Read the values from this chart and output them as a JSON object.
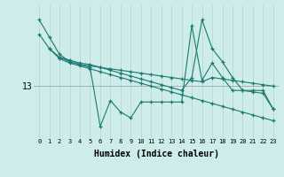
{
  "xlabel": "Humidex (Indice chaleur)",
  "bg_color": "#ceecea",
  "line_color": "#1a7a6e",
  "grid_color_v": "#c8dedd",
  "grid_color_h": "#aaaaaa",
  "ytick_val": 13,
  "xlim": [
    -0.5,
    23.5
  ],
  "ylim": [
    11.2,
    15.8
  ],
  "series": [
    {
      "x": [
        0,
        1,
        2,
        3,
        4,
        5,
        6,
        7,
        8,
        9,
        10,
        11,
        12,
        13,
        14,
        15,
        16,
        17,
        18,
        19,
        20,
        21,
        22,
        23
      ],
      "y": [
        15.3,
        14.7,
        14.1,
        13.85,
        13.75,
        13.65,
        11.6,
        12.5,
        12.1,
        11.9,
        12.45,
        12.45,
        12.45,
        12.45,
        12.45,
        15.1,
        13.2,
        13.8,
        13.3,
        12.85,
        12.85,
        12.85,
        12.85,
        12.2
      ]
    },
    {
      "x": [
        2,
        3,
        4,
        5,
        6,
        7,
        8,
        9,
        10,
        11,
        12,
        13,
        14,
        15,
        16,
        17,
        18,
        19,
        20,
        21,
        22,
        23
      ],
      "y": [
        14.0,
        13.9,
        13.8,
        13.75,
        13.65,
        13.55,
        13.45,
        13.35,
        13.25,
        13.15,
        13.05,
        12.95,
        12.85,
        13.3,
        15.3,
        14.3,
        13.85,
        13.3,
        12.85,
        12.8,
        12.75,
        12.2
      ]
    },
    {
      "x": [
        1,
        2,
        3,
        4,
        5,
        6,
        7,
        8,
        9,
        10,
        11,
        12,
        13,
        14,
        15,
        16,
        17,
        18,
        19,
        20,
        21,
        22,
        23
      ],
      "y": [
        14.3,
        14.0,
        13.85,
        13.75,
        13.7,
        13.65,
        13.6,
        13.55,
        13.5,
        13.45,
        13.4,
        13.35,
        13.3,
        13.25,
        13.2,
        13.15,
        13.3,
        13.25,
        13.2,
        13.15,
        13.1,
        13.05,
        13.0
      ]
    },
    {
      "x": [
        0,
        1,
        2,
        3,
        4,
        5,
        6,
        7,
        8,
        9,
        10,
        11,
        12,
        13,
        14,
        15,
        16,
        17,
        18,
        19,
        20,
        21,
        22,
        23
      ],
      "y": [
        14.8,
        14.3,
        13.95,
        13.8,
        13.7,
        13.6,
        13.5,
        13.4,
        13.3,
        13.2,
        13.1,
        13.0,
        12.9,
        12.8,
        12.7,
        12.6,
        12.5,
        12.4,
        12.3,
        12.2,
        12.1,
        12.0,
        11.9,
        11.8
      ]
    }
  ]
}
